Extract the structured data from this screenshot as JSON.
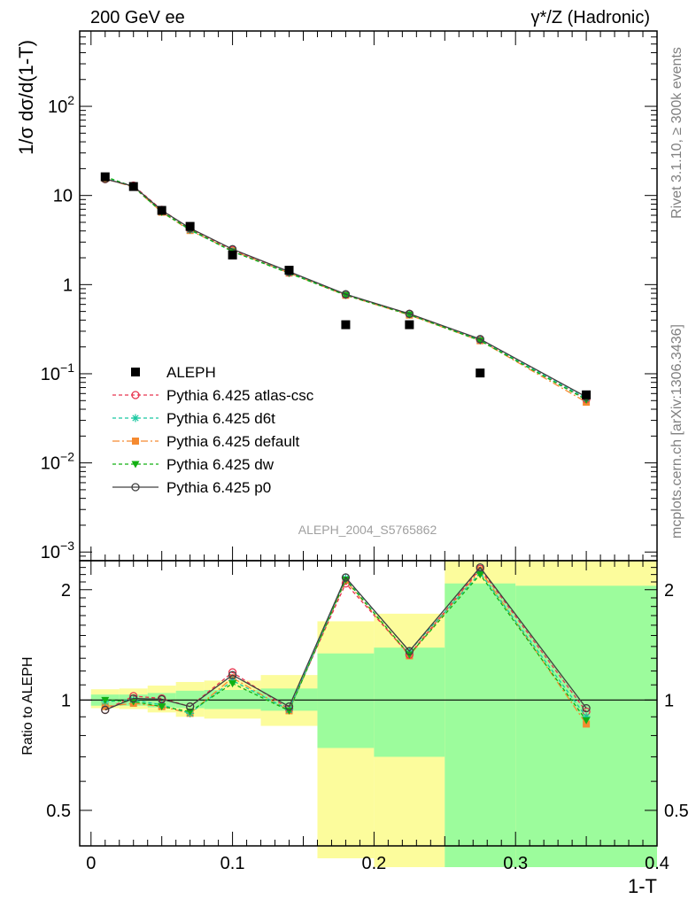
{
  "header": {
    "left": "200 GeV ee",
    "right": "γ*/Z (Hadronic)"
  },
  "side_labels": {
    "rivet": "Rivet 3.1.10, ≥ 300k events",
    "mcplots": "mcplots.cern.ch [arXiv:1306.3436]"
  },
  "analysis_id": "ALEPH_2004_S5765862",
  "colors": {
    "data": "#000000",
    "atlas_csc": "#e8344f",
    "d6t": "#18c8a0",
    "default": "#f58a30",
    "dw": "#12b012",
    "p0": "#404040",
    "band_inner": "#9cfc9c",
    "band_outer": "#fcfc9c"
  },
  "chart_data": [
    {
      "type": "line",
      "ylabel": "1/σ  dσ/d(1-T)",
      "yscale": "log",
      "ylim": [
        0.0008,
        700
      ],
      "xlim": [
        -0.008,
        0.4
      ],
      "y_ticks": [
        {
          "value": 0.001,
          "base": "10",
          "exp": "−3"
        },
        {
          "value": 0.01,
          "base": "10",
          "exp": "−2"
        },
        {
          "value": 0.1,
          "base": "10",
          "exp": "−1"
        },
        {
          "value": 1,
          "base": "1",
          "exp": ""
        },
        {
          "value": 10,
          "base": "10",
          "exp": ""
        },
        {
          "value": 100,
          "base": "10",
          "exp": "2"
        }
      ],
      "x": [
        0.01,
        0.03,
        0.05,
        0.07,
        0.1,
        0.14,
        0.18,
        0.225,
        0.275,
        0.35
      ],
      "data_series": {
        "name": "ALEPH",
        "y": [
          16.2,
          12.6,
          6.8,
          4.5,
          2.15,
          1.45,
          0.355,
          0.355,
          0.102,
          0.058
        ]
      },
      "series": [
        {
          "name": "Pythia 6.425 atlas-csc",
          "key": "atlas_csc",
          "dash": "4,3",
          "marker": "circle-open",
          "y": [
            15.2,
            12.9,
            6.9,
            4.2,
            2.45,
            1.36,
            0.77,
            0.47,
            0.24,
            0.052
          ]
        },
        {
          "name": "Pythia 6.425 d6t",
          "key": "d6t",
          "dash": "4,3",
          "marker": "star",
          "y": [
            16.0,
            12.6,
            6.6,
            4.1,
            2.35,
            1.36,
            0.78,
            0.465,
            0.24,
            0.053
          ]
        },
        {
          "name": "Pythia 6.425 default",
          "key": "default",
          "dash": "8,3,2,3",
          "marker": "square",
          "y": [
            15.5,
            12.4,
            6.5,
            4.05,
            2.4,
            1.35,
            0.76,
            0.455,
            0.235,
            0.048
          ]
        },
        {
          "name": "Pythia 6.425 dw",
          "key": "dw",
          "dash": "4,3",
          "marker": "triangle-down",
          "y": [
            16.3,
            12.5,
            6.5,
            4.15,
            2.35,
            1.34,
            0.76,
            0.46,
            0.235,
            0.051
          ]
        },
        {
          "name": "Pythia 6.425 p0",
          "key": "p0",
          "dash": "",
          "marker": "circle-open",
          "y": [
            15.3,
            12.7,
            6.8,
            4.3,
            2.5,
            1.4,
            0.78,
            0.47,
            0.245,
            0.055
          ]
        }
      ]
    },
    {
      "type": "line",
      "xlabel": "1-T",
      "ylabel": "Ratio to ALEPH",
      "yscale": "log",
      "ylim": [
        0.4,
        2.4
      ],
      "xlim": [
        -0.008,
        0.4
      ],
      "x_ticks": [
        {
          "value": 0,
          "label": "0"
        },
        {
          "value": 0.1,
          "label": "0.1"
        },
        {
          "value": 0.2,
          "label": "0.2"
        },
        {
          "value": 0.3,
          "label": "0.3"
        },
        {
          "value": 0.4,
          "label": "0.4"
        }
      ],
      "y_ticks": [
        {
          "value": 0.5,
          "label": "0.5"
        },
        {
          "value": 1,
          "label": "1"
        },
        {
          "value": 2,
          "label": "2"
        }
      ],
      "bands": [
        {
          "x0": 0.0,
          "x1": 0.02,
          "inner": [
            0.965,
            1.035
          ],
          "outer": [
            0.95,
            1.07
          ]
        },
        {
          "x0": 0.02,
          "x1": 0.04,
          "inner": [
            0.965,
            1.035
          ],
          "outer": [
            0.945,
            1.075
          ]
        },
        {
          "x0": 0.04,
          "x1": 0.06,
          "inner": [
            0.955,
            1.045
          ],
          "outer": [
            0.925,
            1.095
          ]
        },
        {
          "x0": 0.06,
          "x1": 0.08,
          "inner": [
            0.95,
            1.06
          ],
          "outer": [
            0.9,
            1.12
          ]
        },
        {
          "x0": 0.08,
          "x1": 0.12,
          "inner": [
            0.945,
            1.065
          ],
          "outer": [
            0.89,
            1.13
          ]
        },
        {
          "x0": 0.12,
          "x1": 0.16,
          "inner": [
            0.935,
            1.075
          ],
          "outer": [
            0.85,
            1.17
          ]
        },
        {
          "x0": 0.16,
          "x1": 0.2,
          "inner": [
            0.74,
            1.34
          ],
          "outer": [
            0.37,
            1.64
          ]
        },
        {
          "x0": 0.2,
          "x1": 0.25,
          "inner": [
            0.7,
            1.39
          ],
          "outer": [
            0.35,
            1.72
          ]
        },
        {
          "x0": 0.25,
          "x1": 0.3,
          "inner": [
            0.35,
            2.08
          ],
          "outer": [
            0.35,
            2.4
          ]
        },
        {
          "x0": 0.3,
          "x1": 0.4,
          "inner": [
            0.35,
            2.05
          ],
          "outer": [
            0.35,
            2.4
          ]
        }
      ],
      "series": [
        {
          "key": "atlas_csc",
          "y": [
            0.94,
            1.025,
            1.01,
            0.96,
            1.19,
            0.945,
            2.08,
            1.33,
            2.28,
            0.93
          ]
        },
        {
          "key": "d6t",
          "y": [
            0.99,
            1.0,
            0.97,
            0.92,
            1.13,
            0.94,
            2.15,
            1.36,
            2.22,
            0.9
          ]
        },
        {
          "key": "default",
          "y": [
            0.96,
            0.98,
            0.96,
            0.92,
            1.15,
            0.935,
            2.12,
            1.32,
            2.26,
            0.86
          ]
        },
        {
          "key": "dw",
          "y": [
            1.0,
            0.99,
            0.96,
            0.93,
            1.11,
            0.935,
            2.13,
            1.33,
            2.2,
            0.88
          ]
        },
        {
          "key": "p0",
          "y": [
            0.94,
            1.01,
            1.005,
            0.96,
            1.17,
            0.96,
            2.16,
            1.36,
            2.3,
            0.95
          ]
        }
      ]
    }
  ]
}
